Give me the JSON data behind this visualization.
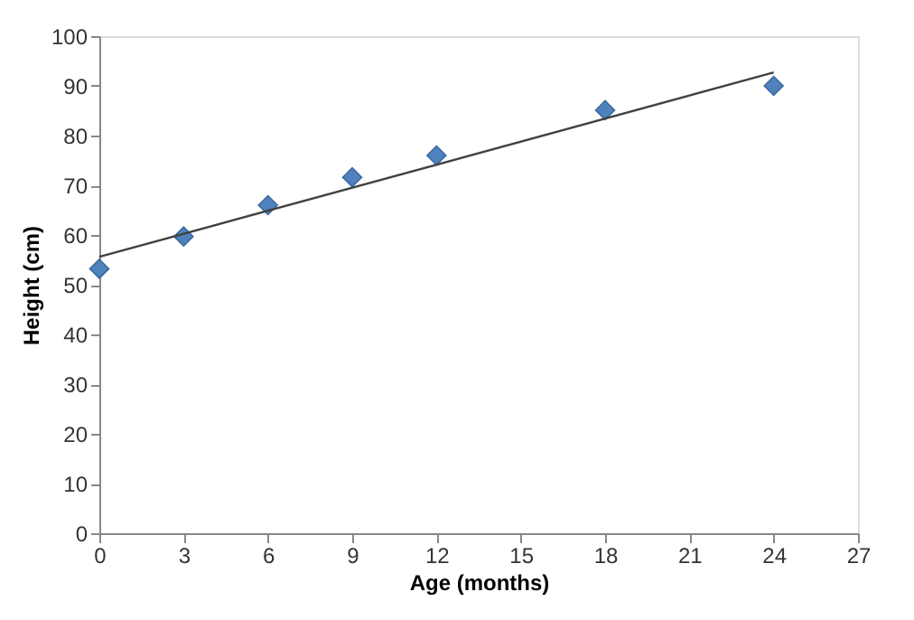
{
  "chart_data": {
    "type": "scatter",
    "xlabel": "Age (months)",
    "ylabel": "Height (cm)",
    "xlim": [
      0,
      27
    ],
    "xticks": [
      0,
      3,
      6,
      9,
      12,
      15,
      18,
      21,
      24,
      27
    ],
    "ylim": [
      0,
      100
    ],
    "yticks": [
      0,
      10,
      20,
      30,
      40,
      50,
      60,
      70,
      80,
      90,
      100
    ],
    "grid": false,
    "marker": "diamond",
    "series": [
      {
        "color": "#4f81bd",
        "x": [
          0,
          3,
          6,
          9,
          12,
          18,
          24
        ],
        "values": [
          53.2,
          59.7,
          66,
          71.6,
          76,
          85.1,
          90
        ]
      },
      {
        "type": "line",
        "color": "#404040",
        "x": [
          0,
          24
        ],
        "values": [
          55.6,
          92.7
        ],
        "marker": "none",
        "line_style": "solid"
      }
    ]
  }
}
